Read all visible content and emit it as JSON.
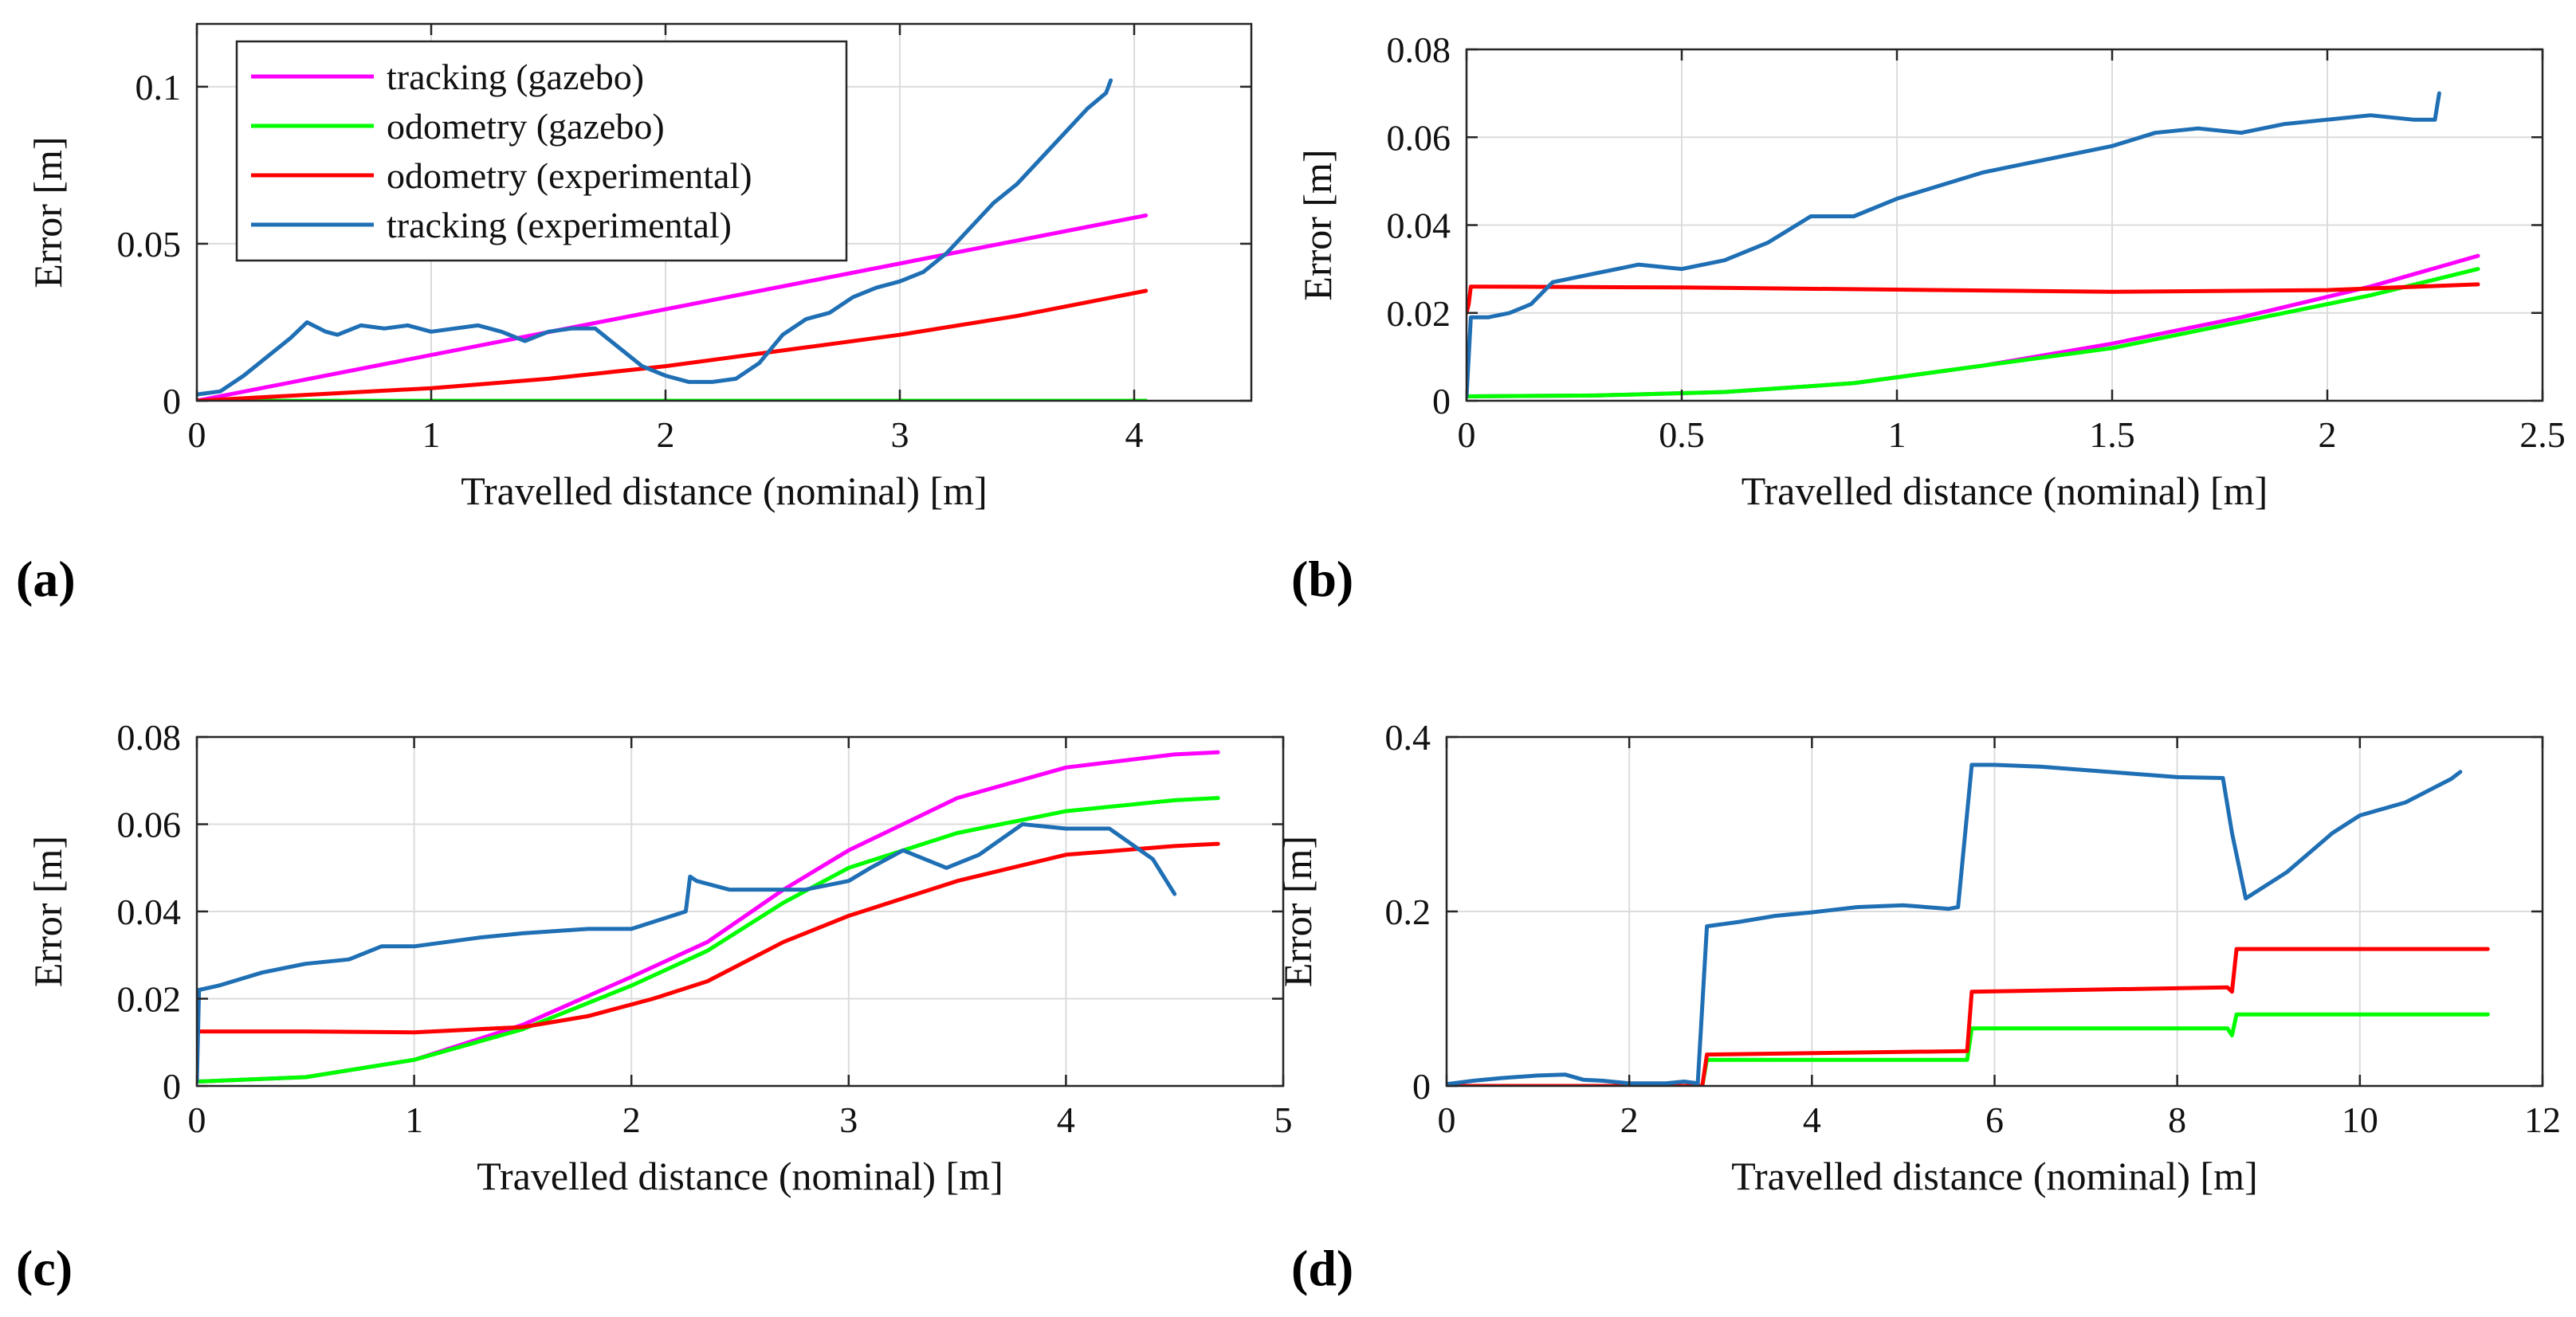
{
  "figure": {
    "panel_labels": [
      "(a)",
      "(b)",
      "(c)",
      "(d)"
    ],
    "legend_entries": [
      "tracking (gazebo)",
      "odometry (gazebo)",
      "odometry (experimental)",
      "tracking (experimental)"
    ]
  },
  "colors": {
    "tracking_gazebo": "#ff00ff",
    "odometry_gazebo": "#00ff00",
    "odometry_experimental": "#ff0000",
    "tracking_experimental": "#1f6fb5",
    "grid": "#dcdcdc",
    "axis": "#262626"
  },
  "chart_data": [
    {
      "type": "line",
      "panel": "(a)",
      "xlabel": "Travelled distance (nominal) [m]",
      "ylabel": "Error [m]",
      "xlim": [
        0,
        4.5
      ],
      "ylim": [
        0,
        0.12
      ],
      "xticks": [
        0,
        1,
        2,
        3,
        4
      ],
      "xtick_labels": [
        "0",
        "1",
        "2",
        "3",
        "4"
      ],
      "yticks": [
        0,
        0.05,
        0.1
      ],
      "ytick_labels": [
        "0",
        "0.05",
        "0.1"
      ],
      "legend": "top-left",
      "series": [
        {
          "name": "tracking (gazebo)",
          "color_key": "tracking_gazebo",
          "x": [
            0,
            4.05
          ],
          "y": [
            0,
            0.059
          ]
        },
        {
          "name": "odometry (gazebo)",
          "color_key": "odometry_gazebo",
          "x": [
            0,
            4.05
          ],
          "y": [
            0,
            0
          ]
        },
        {
          "name": "odometry (experimental)",
          "color_key": "odometry_experimental",
          "x": [
            0,
            0.5,
            1,
            1.5,
            2,
            2.5,
            3,
            3.5,
            4.05
          ],
          "y": [
            0,
            0.002,
            0.004,
            0.007,
            0.011,
            0.016,
            0.021,
            0.027,
            0.035
          ]
        },
        {
          "name": "tracking (experimental)",
          "color_key": "tracking_experimental",
          "x": [
            0,
            0.1,
            0.2,
            0.3,
            0.4,
            0.47,
            0.55,
            0.6,
            0.7,
            0.8,
            0.9,
            1.0,
            1.1,
            1.2,
            1.3,
            1.4,
            1.5,
            1.6,
            1.7,
            1.8,
            1.9,
            2.0,
            2.1,
            2.2,
            2.3,
            2.4,
            2.5,
            2.6,
            2.7,
            2.8,
            2.9,
            3.0,
            3.1,
            3.2,
            3.3,
            3.4,
            3.5,
            3.6,
            3.7,
            3.8,
            3.88,
            3.9
          ],
          "y": [
            0.002,
            0.003,
            0.008,
            0.014,
            0.02,
            0.025,
            0.022,
            0.021,
            0.024,
            0.023,
            0.024,
            0.022,
            0.023,
            0.024,
            0.022,
            0.019,
            0.022,
            0.023,
            0.023,
            0.017,
            0.011,
            0.008,
            0.006,
            0.006,
            0.007,
            0.012,
            0.021,
            0.026,
            0.028,
            0.033,
            0.036,
            0.038,
            0.041,
            0.047,
            0.055,
            0.063,
            0.069,
            0.077,
            0.085,
            0.093,
            0.098,
            0.102
          ]
        }
      ]
    },
    {
      "type": "line",
      "panel": "(b)",
      "xlabel": "Travelled distance (nominal) [m]",
      "ylabel": "Error [m]",
      "xlim": [
        0,
        2.5
      ],
      "ylim": [
        0,
        0.08
      ],
      "xticks": [
        0,
        0.5,
        1,
        1.5,
        2,
        2.5
      ],
      "xtick_labels": [
        "0",
        "0.5",
        "1",
        "1.5",
        "2",
        "2.5"
      ],
      "yticks": [
        0,
        0.02,
        0.04,
        0.06,
        0.08
      ],
      "ytick_labels": [
        "0",
        "0.02",
        "0.04",
        "0.06",
        "0.08"
      ],
      "series": [
        {
          "name": "tracking (gazebo)",
          "color_key": "tracking_gazebo",
          "x": [
            0,
            0.3,
            0.6,
            0.9,
            1.2,
            1.5,
            1.8,
            2.1,
            2.35
          ],
          "y": [
            0.001,
            0.0012,
            0.002,
            0.004,
            0.008,
            0.013,
            0.019,
            0.026,
            0.033
          ]
        },
        {
          "name": "odometry (gazebo)",
          "color_key": "odometry_gazebo",
          "x": [
            0,
            0.3,
            0.6,
            0.9,
            1.2,
            1.5,
            1.8,
            2.1,
            2.35
          ],
          "y": [
            0.001,
            0.0012,
            0.002,
            0.004,
            0.008,
            0.012,
            0.018,
            0.024,
            0.03
          ]
        },
        {
          "name": "odometry (experimental)",
          "color_key": "odometry_experimental",
          "x": [
            0,
            0.005,
            0.01,
            0.02,
            0.5,
            1.0,
            1.5,
            2.0,
            2.35
          ],
          "y": [
            0.02,
            0.022,
            0.026,
            0.026,
            0.0258,
            0.0253,
            0.0248,
            0.0252,
            0.0265
          ]
        },
        {
          "name": "tracking (experimental)",
          "color_key": "tracking_experimental",
          "x": [
            0,
            0.01,
            0.05,
            0.1,
            0.15,
            0.2,
            0.3,
            0.4,
            0.5,
            0.6,
            0.7,
            0.8,
            0.9,
            1.0,
            1.1,
            1.2,
            1.3,
            1.4,
            1.5,
            1.6,
            1.7,
            1.8,
            1.9,
            2.0,
            2.1,
            2.2,
            2.25,
            2.26
          ],
          "y": [
            0.001,
            0.019,
            0.019,
            0.02,
            0.022,
            0.027,
            0.029,
            0.031,
            0.03,
            0.032,
            0.036,
            0.042,
            0.042,
            0.046,
            0.049,
            0.052,
            0.054,
            0.056,
            0.058,
            0.061,
            0.062,
            0.061,
            0.063,
            0.064,
            0.065,
            0.064,
            0.064,
            0.07
          ]
        }
      ]
    },
    {
      "type": "line",
      "panel": "(c)",
      "xlabel": "Travelled distance (nominal) [m]",
      "ylabel": "Error [m]",
      "xlim": [
        0,
        5
      ],
      "ylim": [
        0,
        0.08
      ],
      "xticks": [
        0,
        1,
        2,
        3,
        4,
        5
      ],
      "xtick_labels": [
        "0",
        "1",
        "2",
        "3",
        "4",
        "5"
      ],
      "yticks": [
        0,
        0.02,
        0.04,
        0.06,
        0.08
      ],
      "ytick_labels": [
        "0",
        "0.02",
        "0.04",
        "0.06",
        "0.08"
      ],
      "series": [
        {
          "name": "tracking (gazebo)",
          "color_key": "tracking_gazebo",
          "x": [
            0,
            0.5,
            1.0,
            1.5,
            2.0,
            2.35,
            2.7,
            3.0,
            3.5,
            4.0,
            4.5,
            4.7
          ],
          "y": [
            0.001,
            0.002,
            0.006,
            0.014,
            0.025,
            0.033,
            0.045,
            0.054,
            0.066,
            0.073,
            0.076,
            0.0765
          ]
        },
        {
          "name": "odometry (gazebo)",
          "color_key": "odometry_gazebo",
          "x": [
            0,
            0.5,
            1.0,
            1.5,
            2.0,
            2.35,
            2.7,
            3.0,
            3.5,
            4.0,
            4.5,
            4.7
          ],
          "y": [
            0.001,
            0.002,
            0.006,
            0.013,
            0.023,
            0.031,
            0.042,
            0.05,
            0.058,
            0.063,
            0.0655,
            0.066
          ]
        },
        {
          "name": "odometry (experimental)",
          "color_key": "odometry_experimental",
          "x": [
            0,
            0.5,
            1.0,
            1.5,
            1.8,
            2.1,
            2.35,
            2.7,
            3.0,
            3.5,
            4.0,
            4.5,
            4.7
          ],
          "y": [
            0.0125,
            0.0125,
            0.0123,
            0.0135,
            0.016,
            0.02,
            0.024,
            0.033,
            0.039,
            0.047,
            0.053,
            0.055,
            0.0555
          ]
        },
        {
          "name": "tracking (experimental)",
          "color_key": "tracking_experimental",
          "x": [
            0,
            0.01,
            0.1,
            0.3,
            0.5,
            0.7,
            0.85,
            1.0,
            1.3,
            1.5,
            1.8,
            2.0,
            2.25,
            2.27,
            2.3,
            2.45,
            2.6,
            2.8,
            3.0,
            3.1,
            3.25,
            3.45,
            3.6,
            3.8,
            4.0,
            4.2,
            4.4,
            4.5
          ],
          "y": [
            0.001,
            0.022,
            0.023,
            0.026,
            0.028,
            0.029,
            0.032,
            0.032,
            0.034,
            0.035,
            0.036,
            0.036,
            0.04,
            0.048,
            0.047,
            0.045,
            0.045,
            0.045,
            0.047,
            0.05,
            0.054,
            0.05,
            0.053,
            0.06,
            0.059,
            0.059,
            0.052,
            0.044
          ]
        }
      ]
    },
    {
      "type": "line",
      "panel": "(d)",
      "xlabel": "Travelled distance (nominal) [m]",
      "ylabel": "Error [m]",
      "xlim": [
        0,
        12
      ],
      "ylim": [
        0,
        0.4
      ],
      "xticks": [
        0,
        2,
        4,
        6,
        8,
        10,
        12
      ],
      "xtick_labels": [
        "0",
        "2",
        "4",
        "6",
        "8",
        "10",
        "12"
      ],
      "yticks": [
        0,
        0.2,
        0.4
      ],
      "ytick_labels": [
        "0",
        "0.2",
        "0.4"
      ],
      "series": [
        {
          "name": "tracking (gazebo)",
          "color_key": "tracking_gazebo",
          "x": [],
          "y": []
        },
        {
          "name": "odometry (gazebo)",
          "color_key": "odometry_gazebo",
          "x": [
            0,
            2.8,
            2.85,
            5.7,
            5.75,
            8.55,
            8.6,
            8.65,
            11.4
          ],
          "y": [
            0,
            0,
            0.03,
            0.03,
            0.066,
            0.066,
            0.058,
            0.082,
            0.082
          ]
        },
        {
          "name": "odometry (experimental)",
          "color_key": "odometry_experimental",
          "x": [
            0,
            2.8,
            2.85,
            5.7,
            5.75,
            8.55,
            8.6,
            8.65,
            11.4
          ],
          "y": [
            0,
            0,
            0.036,
            0.04,
            0.108,
            0.113,
            0.108,
            0.157,
            0.157
          ]
        },
        {
          "name": "tracking (experimental)",
          "color_key": "tracking_experimental",
          "x": [
            0,
            0.3,
            0.6,
            1.0,
            1.3,
            1.5,
            1.7,
            2.0,
            2.4,
            2.6,
            2.75,
            2.85,
            3.2,
            3.6,
            4.0,
            4.5,
            5.0,
            5.5,
            5.6,
            5.75,
            6.0,
            6.5,
            7.0,
            7.5,
            8.0,
            8.5,
            8.6,
            8.75,
            9.2,
            9.7,
            10.0,
            10.5,
            11.0,
            11.1
          ],
          "y": [
            0.002,
            0.006,
            0.009,
            0.012,
            0.013,
            0.007,
            0.006,
            0.003,
            0.003,
            0.005,
            0.003,
            0.183,
            0.188,
            0.195,
            0.199,
            0.205,
            0.207,
            0.203,
            0.205,
            0.368,
            0.368,
            0.366,
            0.362,
            0.358,
            0.354,
            0.353,
            0.29,
            0.215,
            0.245,
            0.29,
            0.31,
            0.325,
            0.352,
            0.36
          ]
        }
      ]
    }
  ]
}
